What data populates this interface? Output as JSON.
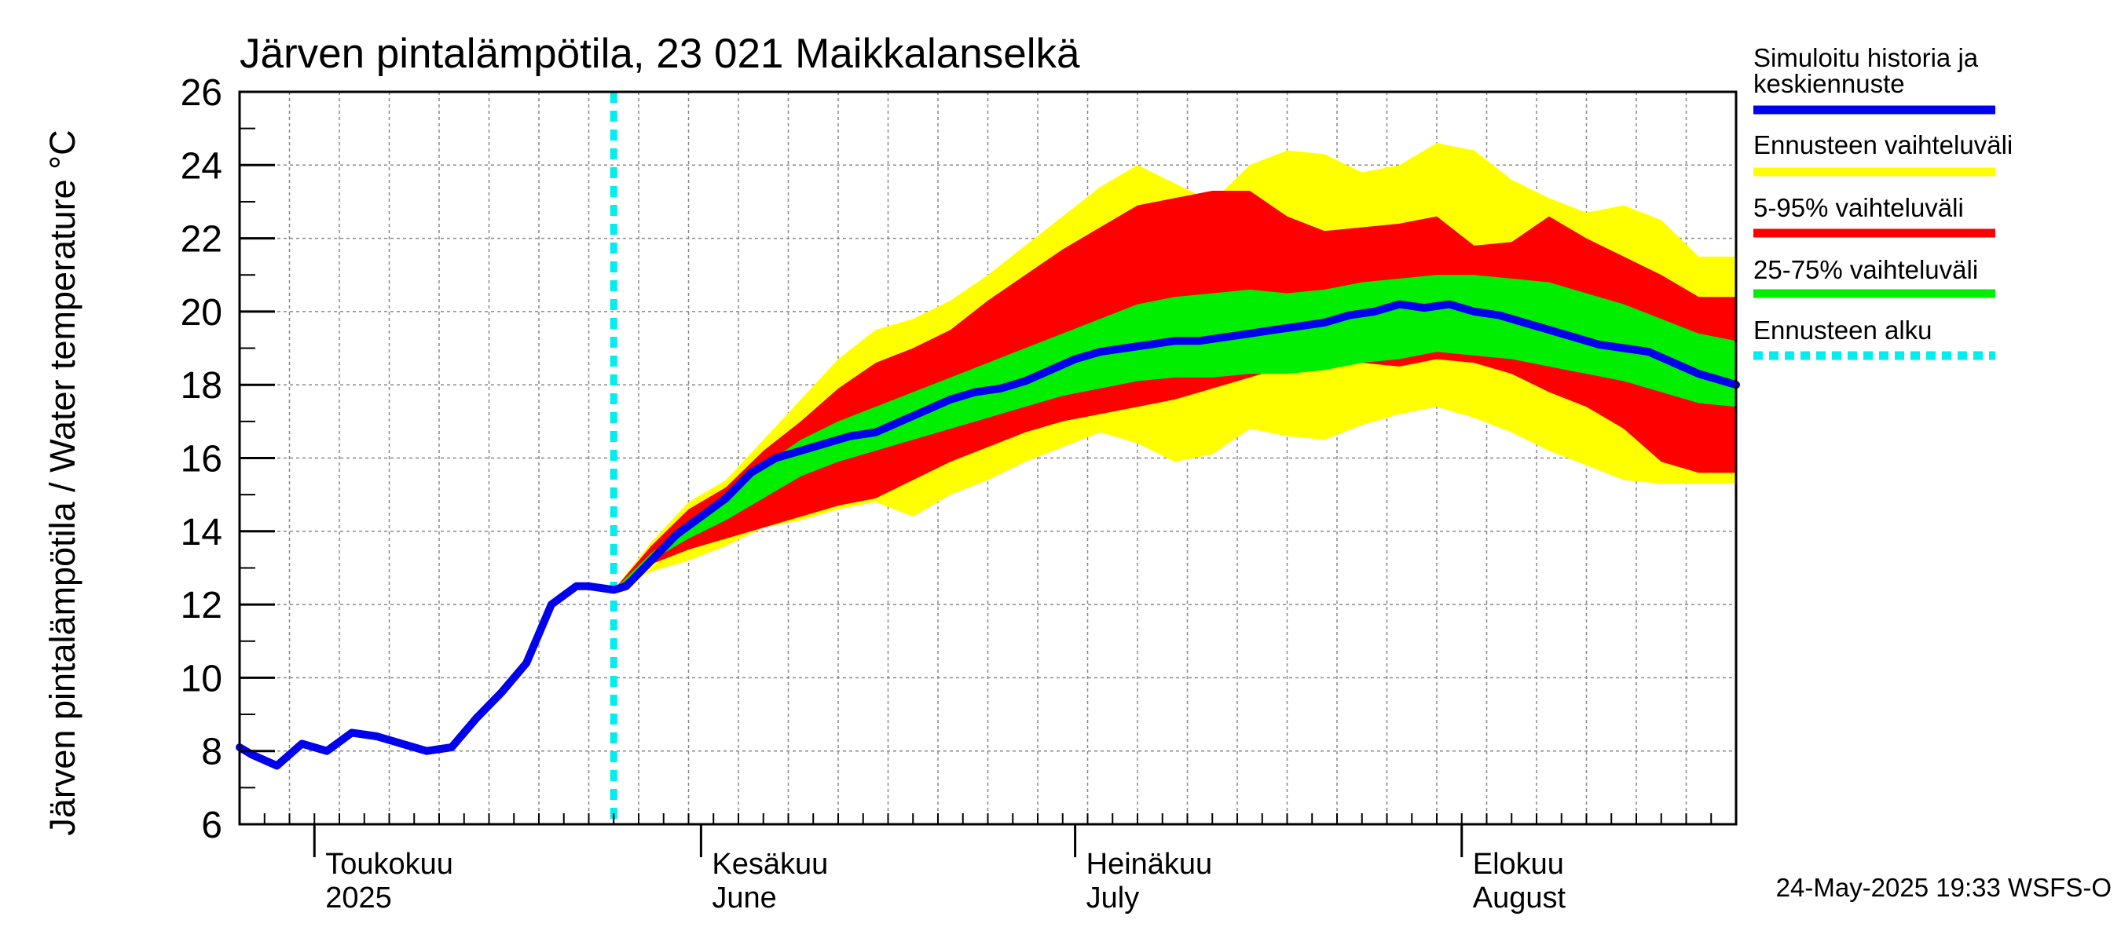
{
  "chart_data": {
    "type": "area",
    "title": "Järven pintalämpötila, 23 021 Maikkalanselkä",
    "ylabel": "Järven pintalämpötila / Water temperature °C",
    "xlabel": "",
    "ylim": [
      6,
      26
    ],
    "yticks": [
      "6",
      "8",
      "10",
      "12",
      "14",
      "16",
      "18",
      "20",
      "22",
      "24",
      "26"
    ],
    "x_range_days": [
      0,
      120
    ],
    "month_labels": [
      {
        "day": 6,
        "fi": "Toukokuu",
        "en": "2025"
      },
      {
        "day": 37,
        "fi": "Kesäkuu",
        "en": "June"
      },
      {
        "day": 67,
        "fi": "Heinäkuu",
        "en": "July"
      },
      {
        "day": 98,
        "fi": "Elokuu",
        "en": "August"
      }
    ],
    "forecast_start_day": 30,
    "grid": true,
    "legend_position": "right",
    "series": [
      {
        "name": "Simuloitu historia ja keskiennuste",
        "color": "#0000ee",
        "x": [
          0,
          1,
          3,
          5,
          7,
          9,
          11,
          13,
          15,
          17,
          19,
          21,
          23,
          25,
          27,
          28,
          30,
          31,
          33,
          35,
          37,
          39,
          41,
          43,
          45,
          47,
          49,
          51,
          53,
          55,
          57,
          59,
          61,
          63,
          65,
          67,
          69,
          71,
          73,
          75,
          77,
          79,
          81,
          83,
          85,
          87,
          89,
          91,
          93,
          95,
          97,
          99,
          101,
          103,
          105,
          107,
          109,
          111,
          113,
          115,
          117,
          120
        ],
        "y": [
          8.1,
          7.9,
          7.6,
          8.2,
          8.0,
          8.5,
          8.4,
          8.2,
          8.0,
          8.1,
          8.9,
          9.6,
          10.4,
          12.0,
          12.5,
          12.5,
          12.4,
          12.5,
          13.2,
          13.9,
          14.4,
          14.9,
          15.6,
          16.0,
          16.2,
          16.4,
          16.6,
          16.7,
          17.0,
          17.3,
          17.6,
          17.8,
          17.9,
          18.1,
          18.4,
          18.7,
          18.9,
          19.0,
          19.1,
          19.2,
          19.2,
          19.3,
          19.4,
          19.5,
          19.6,
          19.7,
          19.9,
          20.0,
          20.2,
          20.1,
          20.2,
          20.0,
          19.9,
          19.7,
          19.5,
          19.3,
          19.1,
          19.0,
          18.9,
          18.6,
          18.3,
          18.0
        ]
      },
      {
        "name": "Ennusteen vaihteluväli",
        "color": "#ffff00",
        "x": [
          30,
          33,
          36,
          39,
          42,
          45,
          48,
          51,
          54,
          57,
          60,
          63,
          66,
          69,
          72,
          75,
          78,
          81,
          84,
          87,
          90,
          93,
          96,
          99,
          102,
          105,
          108,
          111,
          114,
          117,
          120
        ],
        "upper": [
          12.4,
          13.7,
          14.8,
          15.4,
          16.5,
          17.6,
          18.7,
          19.5,
          19.8,
          20.3,
          21.0,
          21.8,
          22.6,
          23.4,
          24.0,
          23.5,
          23.0,
          24.0,
          24.4,
          24.3,
          23.8,
          24.0,
          24.6,
          24.4,
          23.6,
          23.1,
          22.7,
          22.9,
          22.5,
          21.5,
          21.5
        ],
        "lower": [
          12.4,
          12.9,
          13.2,
          13.6,
          14.1,
          14.3,
          14.6,
          14.8,
          14.4,
          15.0,
          15.4,
          15.9,
          16.3,
          16.7,
          16.4,
          15.9,
          16.1,
          16.8,
          16.6,
          16.5,
          16.9,
          17.2,
          17.4,
          17.1,
          16.7,
          16.2,
          15.8,
          15.4,
          15.3,
          15.3,
          15.3
        ]
      },
      {
        "name": "5-95% vaihteluväli",
        "color": "#ff0000",
        "x": [
          30,
          33,
          36,
          39,
          42,
          45,
          48,
          51,
          54,
          57,
          60,
          63,
          66,
          69,
          72,
          75,
          78,
          81,
          84,
          87,
          90,
          93,
          96,
          99,
          102,
          105,
          108,
          111,
          114,
          117,
          120
        ],
        "upper": [
          12.4,
          13.6,
          14.6,
          15.2,
          16.2,
          17.0,
          17.9,
          18.6,
          19.0,
          19.5,
          20.3,
          21.0,
          21.7,
          22.3,
          22.9,
          23.1,
          23.3,
          23.3,
          22.6,
          22.2,
          22.3,
          22.4,
          22.6,
          21.8,
          21.9,
          22.6,
          22.0,
          21.5,
          21.0,
          20.4,
          20.4
        ],
        "lower": [
          12.4,
          13.1,
          13.5,
          13.8,
          14.1,
          14.4,
          14.7,
          14.9,
          15.4,
          15.9,
          16.3,
          16.7,
          17.0,
          17.2,
          17.4,
          17.6,
          17.9,
          18.2,
          18.5,
          18.7,
          18.6,
          18.5,
          18.7,
          18.6,
          18.3,
          17.8,
          17.4,
          16.8,
          15.9,
          15.6,
          15.6
        ]
      },
      {
        "name": "25-75% vaihteluväli",
        "color": "#00ee00",
        "x": [
          30,
          33,
          36,
          39,
          42,
          45,
          48,
          51,
          54,
          57,
          60,
          63,
          66,
          69,
          72,
          75,
          78,
          81,
          84,
          87,
          90,
          93,
          96,
          99,
          102,
          105,
          108,
          111,
          114,
          117,
          120
        ],
        "upper": [
          12.4,
          13.4,
          14.2,
          14.8,
          15.8,
          16.5,
          17.0,
          17.4,
          17.8,
          18.2,
          18.6,
          19.0,
          19.4,
          19.8,
          20.2,
          20.4,
          20.5,
          20.6,
          20.5,
          20.6,
          20.8,
          20.9,
          21.0,
          21.0,
          20.9,
          20.8,
          20.5,
          20.2,
          19.8,
          19.4,
          19.2
        ],
        "lower": [
          12.4,
          13.2,
          13.8,
          14.3,
          14.9,
          15.5,
          15.9,
          16.2,
          16.5,
          16.8,
          17.1,
          17.4,
          17.7,
          17.9,
          18.1,
          18.2,
          18.2,
          18.3,
          18.3,
          18.4,
          18.6,
          18.7,
          18.9,
          18.8,
          18.7,
          18.5,
          18.3,
          18.1,
          17.8,
          17.5,
          17.4
        ]
      }
    ],
    "forecast_line": {
      "name": "Ennusteen alku",
      "color": "#00eeee"
    }
  },
  "footer": "24-May-2025 19:33 WSFS-O"
}
